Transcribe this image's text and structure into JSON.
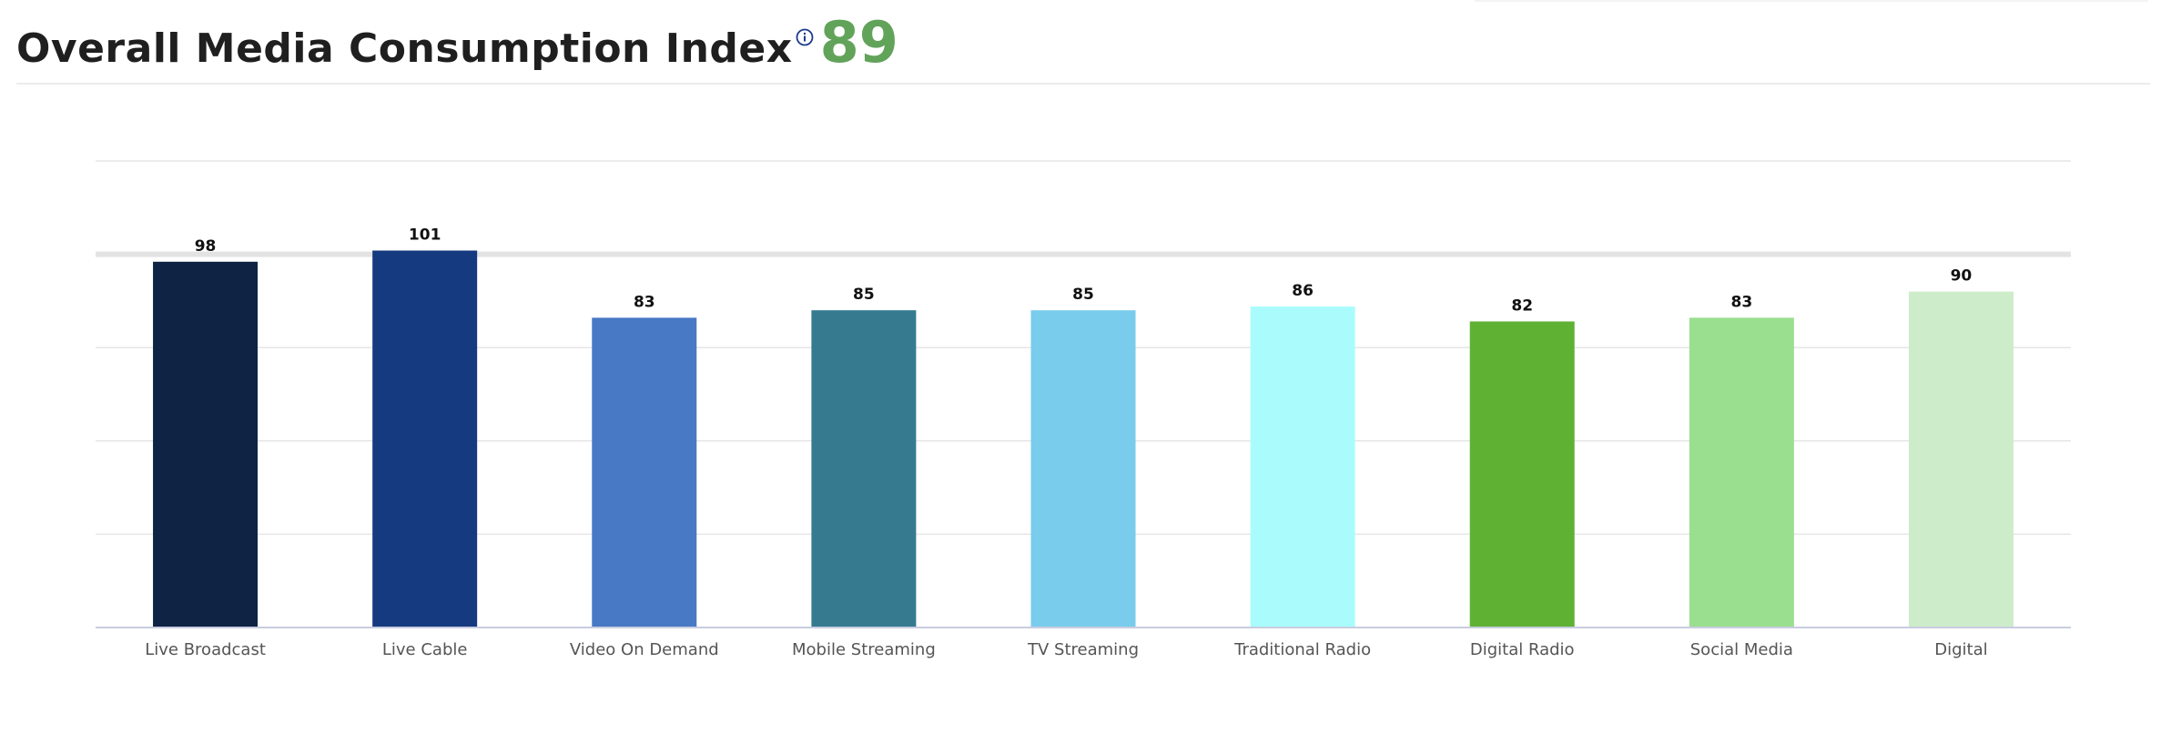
{
  "header": {
    "title": "Overall Media Consumption Index",
    "score": "89"
  },
  "icons": {
    "info": "info-icon"
  },
  "colors": {
    "score": "#62a35a",
    "grid": "#e6e6e6",
    "reference_line": "#e3e3e3",
    "axis": "#c9cde0"
  },
  "chart_data": {
    "type": "bar",
    "categories": [
      "Live Broadcast",
      "Live Cable",
      "Video On Demand",
      "Mobile Streaming",
      "TV Streaming",
      "Traditional Radio",
      "Digital Radio",
      "Social Media",
      "Digital"
    ],
    "values": [
      98,
      101,
      83,
      85,
      85,
      86,
      82,
      83,
      90
    ],
    "data_labels": [
      "98",
      "101",
      "83",
      "85",
      "85",
      "86",
      "82",
      "83",
      "90"
    ],
    "bar_colors": [
      "#0f2444",
      "#163a80",
      "#4879c5",
      "#367a90",
      "#79cceb",
      "#aafcfc",
      "#5fb133",
      "#9ade90",
      "#cdecc9"
    ],
    "ylim": [
      0,
      125
    ],
    "reference_line": 100,
    "grid": true,
    "xlabel": "",
    "ylabel": ""
  }
}
